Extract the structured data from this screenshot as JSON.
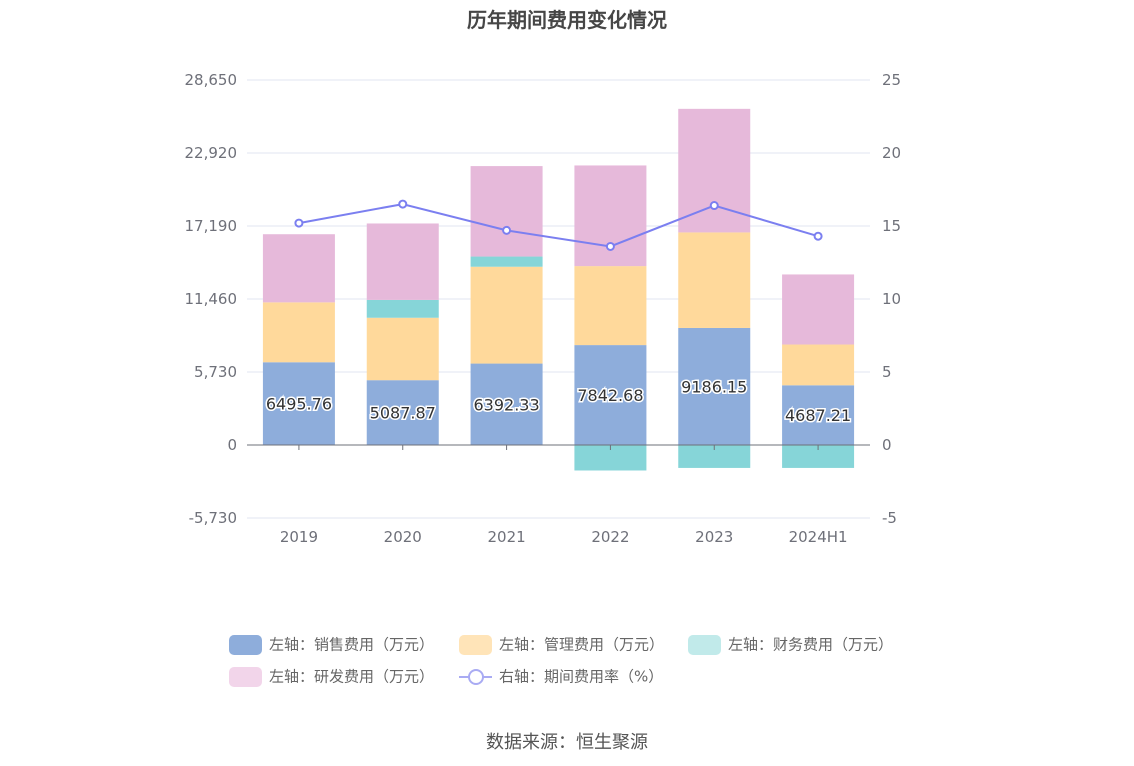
{
  "title": "历年期间费用变化情况",
  "source": "数据来源：恒生聚源",
  "legend": [
    {
      "label": "左轴：销售费用（万元）",
      "color": "#8eaddb",
      "type": "bar"
    },
    {
      "label": "左轴：管理费用（万元）",
      "color": "#ffe4b8",
      "type": "bar"
    },
    {
      "label": "左轴：财务费用（万元）",
      "color": "#c1eaea",
      "type": "bar"
    },
    {
      "label": "左轴：研发费用（万元）",
      "color": "#f2d5ea",
      "type": "bar"
    },
    {
      "label": "右轴：期间费用率（%）",
      "color": "#a9abf3",
      "type": "line"
    }
  ],
  "chart_data": {
    "type": "bar",
    "stacked": true,
    "categories": [
      "2019",
      "2020",
      "2021",
      "2022",
      "2023",
      "2024H1"
    ],
    "left_axis": {
      "ylim": [
        -5730,
        28650
      ],
      "ticks": [
        "-5,730",
        "0",
        "5,730",
        "11,460",
        "17,190",
        "22,920",
        "28,650"
      ],
      "tick_values": [
        -5730,
        0,
        5730,
        11460,
        17190,
        22920,
        28650
      ]
    },
    "right_axis": {
      "ylim": [
        -5,
        25
      ],
      "ticks": [
        "-5",
        "0",
        "5",
        "10",
        "15",
        "20",
        "25"
      ],
      "tick_values": [
        -5,
        0,
        5,
        10,
        15,
        20,
        25
      ]
    },
    "series": [
      {
        "name": "左轴：销售费用（万元）",
        "axis": "left",
        "color": "#8eaddb",
        "values": [
          6495.76,
          5087.87,
          6392.33,
          7842.68,
          9186.15,
          4687.21
        ],
        "labels": [
          "6495.76",
          "5087.87",
          "6392.33",
          "7842.68",
          "9186.15",
          "4687.21"
        ]
      },
      {
        "name": "左轴：管理费用（万元）",
        "axis": "left",
        "color": "#ffd99b",
        "values": [
          4700,
          4900,
          7600,
          6200,
          7500,
          3200
        ]
      },
      {
        "name": "左轴：财务费用（万元）",
        "axis": "left",
        "color": "#86d5d8",
        "values": [
          0,
          1400,
          800,
          -2000,
          -1800,
          -1800
        ]
      },
      {
        "name": "左轴：研发费用（万元）",
        "axis": "left",
        "color": "#e6b9da",
        "values": [
          5350,
          6000,
          7100,
          7900,
          9700,
          5500
        ]
      },
      {
        "name": "右轴：期间费用率（%）",
        "axis": "right",
        "type": "line",
        "color": "#7b7ff0",
        "values": [
          15.2,
          16.5,
          14.7,
          13.6,
          16.4,
          14.3
        ]
      }
    ],
    "grid": true
  }
}
